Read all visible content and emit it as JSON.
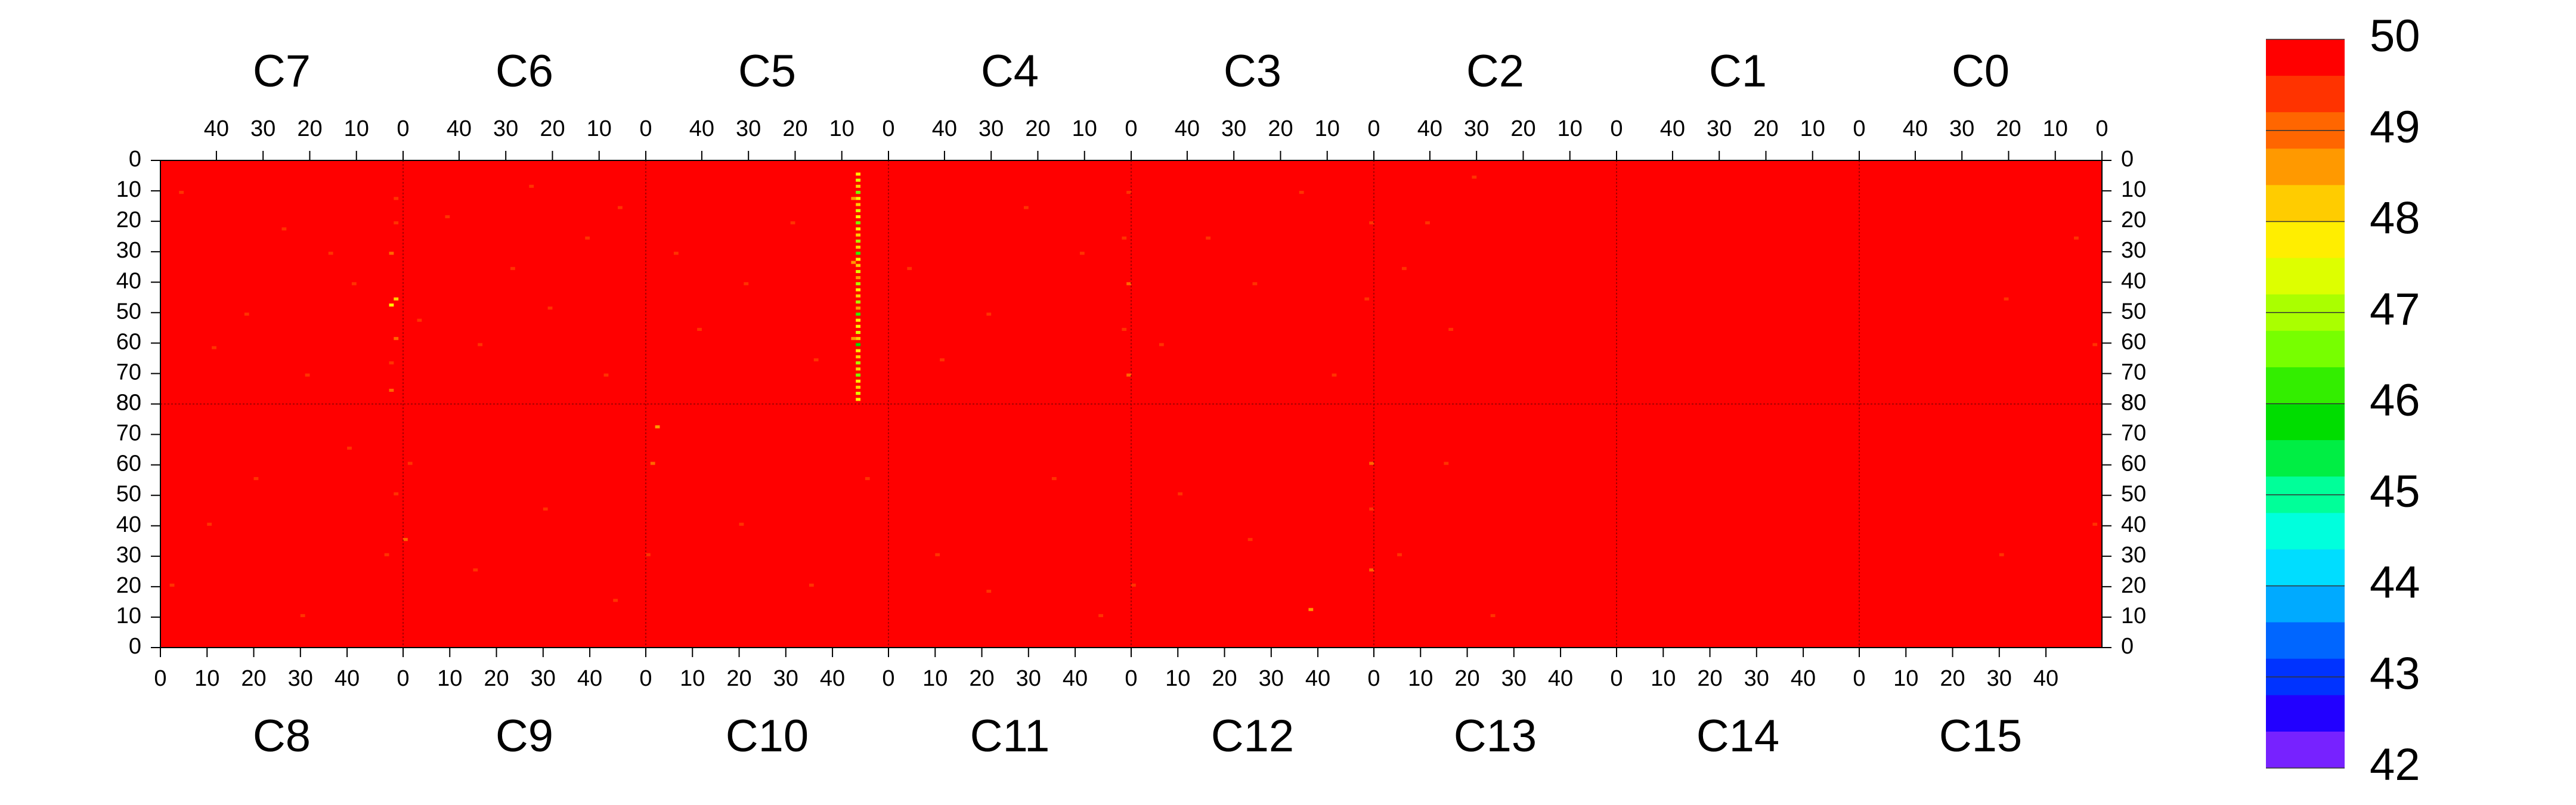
{
  "chart_data": {
    "type": "heatmap",
    "top_chips": [
      "C7",
      "C6",
      "C5",
      "C4",
      "C3",
      "C2",
      "C1",
      "C0"
    ],
    "bottom_chips": [
      "C8",
      "C9",
      "C10",
      "C11",
      "C12",
      "C13",
      "C14",
      "C15"
    ],
    "xlim": [
      0,
      52
    ],
    "xticks": [
      0,
      10,
      20,
      30,
      40
    ],
    "ylim": [
      0,
      80
    ],
    "yticks": [
      0,
      10,
      20,
      30,
      40,
      50,
      60,
      70,
      80
    ],
    "zlim": [
      42,
      50
    ],
    "zticks": [
      42,
      43,
      44,
      45,
      46,
      47,
      48,
      49,
      50
    ],
    "colors": [
      "#ff0000",
      "#ff3300",
      "#ff6600",
      "#ff9900",
      "#ffcc00",
      "#ffee00",
      "#ddff00",
      "#aaff00",
      "#77ff00",
      "#33ee00",
      "#00dd00",
      "#00ee44",
      "#00ff99",
      "#00ffdd",
      "#00ddff",
      "#00aaff",
      "#0066ff",
      "#0033ff",
      "#2200ff",
      "#7722ff"
    ],
    "background_value": 50,
    "top_cells": [
      [
        0,
        1,
        20,
        49.3
      ],
      [
        0,
        2,
        30,
        49.0
      ],
      [
        0,
        1,
        45,
        48.2
      ],
      [
        0,
        2,
        47,
        48.0
      ],
      [
        0,
        1,
        58,
        49.1
      ],
      [
        0,
        2,
        66,
        49.4
      ],
      [
        0,
        1,
        12,
        49.2
      ],
      [
        0,
        2,
        75,
        49.0
      ],
      [
        0,
        15,
        30,
        49.4
      ],
      [
        0,
        25,
        22,
        49.5
      ],
      [
        0,
        33,
        50,
        49.3
      ],
      [
        0,
        40,
        61,
        49.4
      ],
      [
        0,
        47,
        10,
        49.5
      ],
      [
        0,
        20,
        70,
        49.2
      ],
      [
        0,
        10,
        40,
        49.4
      ],
      [
        1,
        5,
        15,
        49.3
      ],
      [
        1,
        12,
        25,
        49.4
      ],
      [
        1,
        20,
        48,
        49.2
      ],
      [
        1,
        28,
        35,
        49.5
      ],
      [
        1,
        35,
        60,
        49.3
      ],
      [
        1,
        42,
        18,
        49.4
      ],
      [
        1,
        8,
        70,
        49.2
      ],
      [
        1,
        48,
        52,
        49.5
      ],
      [
        1,
        24,
        8,
        49.4
      ],
      [
        2,
        6,
        4,
        48.0
      ],
      [
        2,
        6,
        6,
        47.5
      ],
      [
        2,
        6,
        8,
        48.3
      ],
      [
        2,
        6,
        10,
        46.8
      ],
      [
        2,
        6,
        12,
        47.8
      ],
      [
        2,
        6,
        14,
        48.2
      ],
      [
        2,
        6,
        16,
        47.2
      ],
      [
        2,
        6,
        18,
        48.0
      ],
      [
        2,
        6,
        20,
        46.5
      ],
      [
        2,
        6,
        22,
        47.9
      ],
      [
        2,
        6,
        24,
        48.4
      ],
      [
        2,
        6,
        26,
        47.0
      ],
      [
        2,
        6,
        28,
        48.1
      ],
      [
        2,
        6,
        30,
        46.2
      ],
      [
        2,
        6,
        32,
        47.6
      ],
      [
        2,
        6,
        34,
        48.3
      ],
      [
        2,
        6,
        36,
        47.4
      ],
      [
        2,
        6,
        38,
        48.6
      ],
      [
        2,
        6,
        40,
        46.9
      ],
      [
        2,
        6,
        42,
        47.7
      ],
      [
        2,
        6,
        44,
        48.2
      ],
      [
        2,
        6,
        46,
        47.1
      ],
      [
        2,
        6,
        48,
        48.5
      ],
      [
        2,
        6,
        50,
        46.4
      ],
      [
        2,
        6,
        52,
        47.9
      ],
      [
        2,
        6,
        54,
        48.0
      ],
      [
        2,
        6,
        56,
        47.3
      ],
      [
        2,
        6,
        58,
        48.4
      ],
      [
        2,
        6,
        60,
        45.8
      ],
      [
        2,
        6,
        62,
        47.6
      ],
      [
        2,
        6,
        64,
        48.1
      ],
      [
        2,
        6,
        66,
        47.0
      ],
      [
        2,
        6,
        68,
        48.3
      ],
      [
        2,
        6,
        70,
        46.6
      ],
      [
        2,
        6,
        72,
        47.8
      ],
      [
        2,
        6,
        74,
        48.2
      ],
      [
        2,
        6,
        76,
        47.5
      ],
      [
        2,
        6,
        78,
        48.0
      ],
      [
        2,
        7,
        12,
        48.6
      ],
      [
        2,
        7,
        33,
        48.8
      ],
      [
        2,
        7,
        58,
        48.5
      ],
      [
        2,
        20,
        20,
        49.3
      ],
      [
        2,
        30,
        40,
        49.4
      ],
      [
        2,
        40,
        55,
        49.2
      ],
      [
        2,
        45,
        30,
        49.5
      ],
      [
        2,
        15,
        65,
        49.3
      ],
      [
        3,
        0,
        10,
        49.2
      ],
      [
        3,
        1,
        25,
        49.3
      ],
      [
        3,
        0,
        40,
        49.0
      ],
      [
        3,
        1,
        55,
        49.4
      ],
      [
        3,
        0,
        70,
        49.1
      ],
      [
        3,
        10,
        30,
        49.4
      ],
      [
        3,
        22,
        15,
        49.5
      ],
      [
        3,
        30,
        50,
        49.3
      ],
      [
        3,
        40,
        65,
        49.4
      ],
      [
        3,
        47,
        35,
        49.5
      ],
      [
        4,
        0,
        20,
        49.4
      ],
      [
        4,
        1,
        45,
        49.3
      ],
      [
        4,
        15,
        10,
        49.4
      ],
      [
        4,
        25,
        40,
        49.5
      ],
      [
        4,
        35,
        25,
        49.3
      ],
      [
        4,
        45,
        60,
        49.4
      ],
      [
        4,
        8,
        70,
        49.3
      ],
      [
        5,
        30,
        5,
        49.5
      ],
      [
        5,
        40,
        20,
        49.4
      ],
      [
        5,
        35,
        55,
        49.5
      ],
      [
        5,
        45,
        35,
        49.3
      ],
      [
        6,
        25,
        30,
        49.6
      ],
      [
        6,
        40,
        60,
        49.6
      ],
      [
        7,
        5,
        25,
        49.5
      ],
      [
        7,
        20,
        45,
        49.5
      ],
      [
        7,
        40,
        15,
        49.6
      ],
      [
        7,
        1,
        60,
        49.4
      ]
    ],
    "bottom_cells": [
      [
        0,
        2,
        20,
        49.3
      ],
      [
        0,
        10,
        40,
        49.4
      ],
      [
        0,
        20,
        55,
        49.5
      ],
      [
        0,
        30,
        10,
        49.4
      ],
      [
        0,
        40,
        65,
        49.3
      ],
      [
        0,
        48,
        30,
        49.5
      ],
      [
        0,
        50,
        50,
        49.3
      ],
      [
        1,
        0,
        35,
        48.9
      ],
      [
        1,
        1,
        60,
        49.2
      ],
      [
        1,
        15,
        25,
        49.4
      ],
      [
        1,
        30,
        45,
        49.3
      ],
      [
        1,
        45,
        15,
        49.5
      ],
      [
        2,
        0,
        30,
        49.2
      ],
      [
        2,
        1,
        60,
        49.0
      ],
      [
        2,
        2,
        72,
        48.8
      ],
      [
        2,
        20,
        40,
        49.3
      ],
      [
        2,
        35,
        20,
        49.4
      ],
      [
        2,
        47,
        55,
        49.5
      ],
      [
        3,
        10,
        30,
        49.4
      ],
      [
        3,
        21,
        18,
        49.2
      ],
      [
        3,
        35,
        55,
        49.4
      ],
      [
        3,
        45,
        10,
        49.5
      ],
      [
        4,
        0,
        20,
        49.3
      ],
      [
        4,
        10,
        50,
        49.4
      ],
      [
        4,
        38,
        12,
        48.8
      ],
      [
        4,
        51,
        25,
        49.0
      ],
      [
        4,
        51,
        45,
        49.2
      ],
      [
        4,
        51,
        60,
        49.1
      ],
      [
        4,
        25,
        35,
        49.4
      ],
      [
        5,
        5,
        30,
        49.4
      ],
      [
        5,
        15,
        60,
        49.5
      ],
      [
        5,
        25,
        10,
        49.5
      ],
      [
        6,
        10,
        20,
        49.6
      ],
      [
        6,
        40,
        50,
        49.6
      ],
      [
        7,
        30,
        30,
        49.5
      ],
      [
        7,
        50,
        40,
        49.3
      ],
      [
        7,
        15,
        65,
        49.6
      ]
    ]
  }
}
